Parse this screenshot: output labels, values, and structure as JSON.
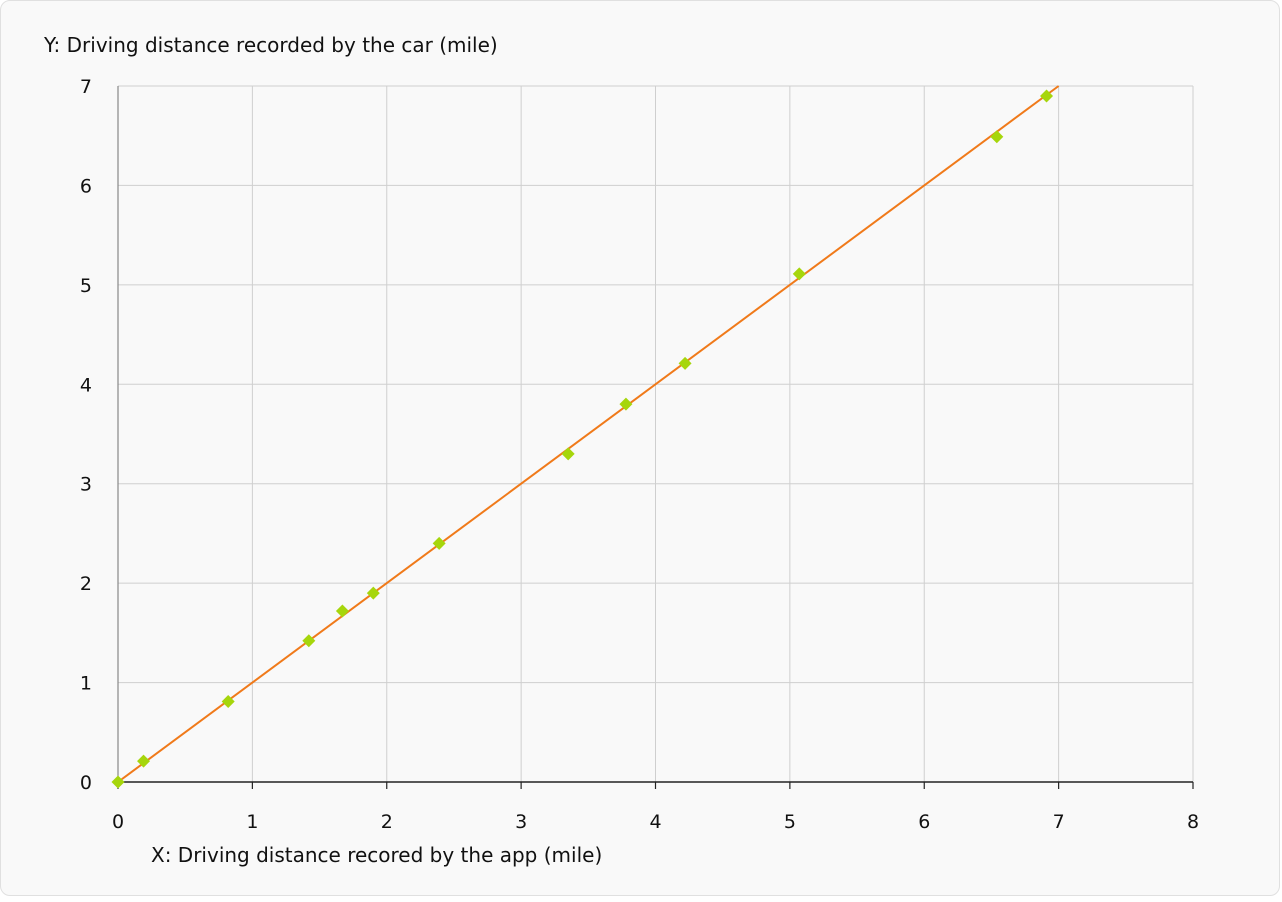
{
  "chart_data": {
    "type": "scatter",
    "title": "",
    "ylabel": "Y: Driving distance recorded by the car (mile)",
    "xlabel": "X: Driving distance recored by the app (mile)",
    "xlim": [
      0,
      8
    ],
    "ylim": [
      0,
      7
    ],
    "x_ticks": [
      "0",
      "1",
      "2",
      "3",
      "4",
      "5",
      "6",
      "7",
      "8"
    ],
    "y_ticks": [
      "0",
      "1",
      "2",
      "3",
      "4",
      "5",
      "6",
      "7"
    ],
    "grid": true,
    "legend": "none",
    "series": [
      {
        "kind": "points",
        "marker": "diamond",
        "color": "#a6d60c",
        "x": [
          0.0,
          0.19,
          0.82,
          1.42,
          1.67,
          1.9,
          2.39,
          3.35,
          3.78,
          4.22,
          5.07,
          6.54,
          6.91
        ],
        "y": [
          0.0,
          0.21,
          0.81,
          1.42,
          1.72,
          1.9,
          2.4,
          3.3,
          3.8,
          4.21,
          5.11,
          6.49,
          6.9
        ]
      },
      {
        "kind": "line",
        "color": "#f07a1a",
        "x": [
          0,
          7
        ],
        "y": [
          0,
          7
        ]
      }
    ]
  }
}
